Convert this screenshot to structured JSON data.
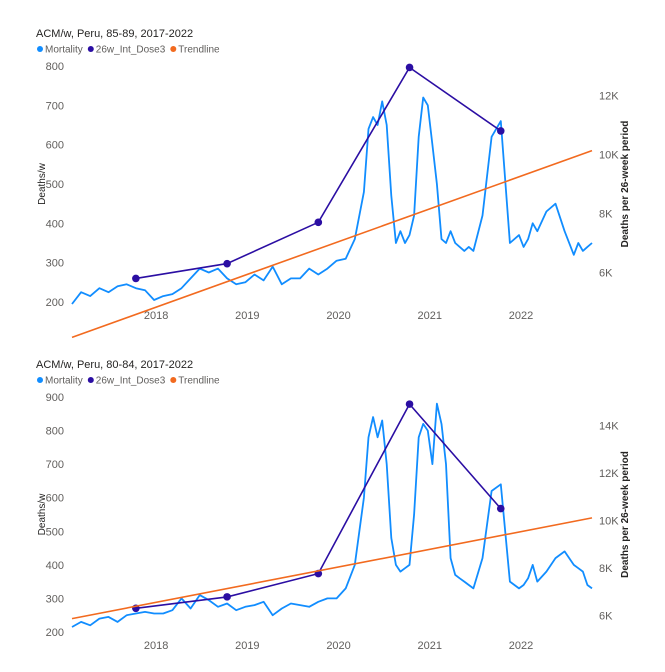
{
  "colors": {
    "mortality": "#118DFF",
    "dose": "#2B0EA3",
    "trend": "#F26A1F",
    "grid": "#e1dfdd"
  },
  "chart_data": [
    {
      "type": "line",
      "title": "ACM/w, Peru, 85-89, 2017-2022",
      "legend": [
        "Mortality",
        "26w_Int_Dose3",
        "Trendline"
      ],
      "legend_position": "top-left",
      "ylabel": "Deaths/w",
      "y2label": "Deaths per 26-week period",
      "ylim": [
        200,
        800
      ],
      "y2lim": [
        5000,
        13000
      ],
      "xlim": [
        2017.1,
        2022.8
      ],
      "yticks": [
        "200",
        "300",
        "400",
        "500",
        "600",
        "700",
        "800"
      ],
      "y2ticks": [
        "6K",
        "8K",
        "10K",
        "12K"
      ],
      "xticks": [
        "2018",
        "2019",
        "2020",
        "2021",
        "2022"
      ],
      "series": [
        {
          "name": "Mortality",
          "axis": "left",
          "x": [
            2017.1,
            2017.2,
            2017.3,
            2017.4,
            2017.5,
            2017.6,
            2017.7,
            2017.8,
            2017.9,
            2018.0,
            2018.1,
            2018.2,
            2018.3,
            2018.4,
            2018.5,
            2018.6,
            2018.7,
            2018.8,
            2018.9,
            2019.0,
            2019.1,
            2019.2,
            2019.3,
            2019.4,
            2019.5,
            2019.6,
            2019.7,
            2019.8,
            2019.9,
            2020.0,
            2020.1,
            2020.2,
            2020.3,
            2020.35,
            2020.4,
            2020.45,
            2020.5,
            2020.55,
            2020.6,
            2020.65,
            2020.7,
            2020.75,
            2020.8,
            2020.85,
            2020.9,
            2020.95,
            2021.0,
            2021.05,
            2021.1,
            2021.15,
            2021.2,
            2021.25,
            2021.3,
            2021.35,
            2021.4,
            2021.45,
            2021.5,
            2021.6,
            2021.7,
            2021.8,
            2021.9,
            2022.0,
            2022.05,
            2022.1,
            2022.15,
            2022.2,
            2022.3,
            2022.4,
            2022.5,
            2022.6,
            2022.65,
            2022.7,
            2022.75,
            2022.8
          ],
          "values": [
            195,
            225,
            215,
            235,
            225,
            240,
            245,
            235,
            230,
            205,
            215,
            220,
            235,
            260,
            285,
            275,
            285,
            260,
            245,
            250,
            270,
            255,
            290,
            245,
            260,
            260,
            285,
            270,
            285,
            305,
            310,
            360,
            480,
            640,
            670,
            650,
            710,
            650,
            470,
            350,
            380,
            350,
            370,
            420,
            620,
            720,
            700,
            600,
            500,
            360,
            350,
            380,
            350,
            340,
            330,
            340,
            330,
            420,
            620,
            660,
            350,
            370,
            340,
            360,
            400,
            380,
            430,
            450,
            380,
            320,
            350,
            330,
            340,
            350
          ]
        },
        {
          "name": "26w_Int_Dose3",
          "axis": "right",
          "x": [
            2017.8,
            2018.8,
            2019.8,
            2020.8,
            2021.8
          ],
          "values": [
            5800,
            6300,
            7700,
            12950,
            10800
          ]
        },
        {
          "name": "Trendline",
          "axis": "left",
          "x": [
            2017.1,
            2022.8
          ],
          "values": [
            110,
            585
          ]
        }
      ]
    },
    {
      "type": "line",
      "title": "ACM/w, Peru, 80-84, 2017-2022",
      "legend": [
        "Mortality",
        "26w_Int_Dose3",
        "Trendline"
      ],
      "legend_position": "top-left",
      "ylabel": "Deaths/w",
      "y2label": "Deaths per 26-week period",
      "ylim": [
        200,
        900
      ],
      "y2lim": [
        5300,
        15200
      ],
      "xlim": [
        2017.1,
        2022.8
      ],
      "yticks": [
        "200",
        "300",
        "400",
        "500",
        "600",
        "700",
        "800",
        "900"
      ],
      "y2ticks": [
        "6K",
        "8K",
        "10K",
        "12K",
        "14K"
      ],
      "xticks": [
        "2018",
        "2019",
        "2020",
        "2021",
        "2022"
      ],
      "series": [
        {
          "name": "Mortality",
          "axis": "left",
          "x": [
            2017.1,
            2017.2,
            2017.3,
            2017.4,
            2017.5,
            2017.6,
            2017.7,
            2017.8,
            2017.9,
            2018.0,
            2018.1,
            2018.2,
            2018.3,
            2018.4,
            2018.5,
            2018.6,
            2018.7,
            2018.8,
            2018.9,
            2019.0,
            2019.1,
            2019.2,
            2019.3,
            2019.4,
            2019.5,
            2019.6,
            2019.7,
            2019.8,
            2019.9,
            2020.0,
            2020.1,
            2020.2,
            2020.3,
            2020.35,
            2020.4,
            2020.45,
            2020.5,
            2020.55,
            2020.6,
            2020.65,
            2020.7,
            2020.75,
            2020.8,
            2020.85,
            2020.9,
            2020.95,
            2021.0,
            2021.05,
            2021.1,
            2021.15,
            2021.2,
            2021.25,
            2021.3,
            2021.35,
            2021.4,
            2021.45,
            2021.5,
            2021.6,
            2021.7,
            2021.8,
            2021.9,
            2022.0,
            2022.05,
            2022.1,
            2022.15,
            2022.2,
            2022.3,
            2022.4,
            2022.5,
            2022.6,
            2022.65,
            2022.7,
            2022.75,
            2022.8
          ],
          "values": [
            215,
            230,
            220,
            240,
            245,
            230,
            250,
            255,
            260,
            255,
            255,
            265,
            300,
            270,
            310,
            295,
            275,
            285,
            265,
            275,
            280,
            290,
            250,
            270,
            285,
            280,
            275,
            290,
            300,
            300,
            330,
            400,
            600,
            780,
            840,
            780,
            830,
            700,
            480,
            400,
            380,
            390,
            400,
            550,
            780,
            820,
            800,
            700,
            880,
            820,
            700,
            420,
            370,
            360,
            350,
            340,
            330,
            420,
            620,
            640,
            350,
            330,
            340,
            360,
            400,
            350,
            380,
            420,
            440,
            400,
            390,
            380,
            340,
            330
          ]
        },
        {
          "name": "26w_Int_Dose3",
          "axis": "right",
          "x": [
            2017.8,
            2018.8,
            2019.8,
            2020.8,
            2021.8
          ],
          "values": [
            6300,
            6780,
            7760,
            14900,
            10500
          ]
        },
        {
          "name": "Trendline",
          "axis": "left",
          "x": [
            2017.1,
            2022.8
          ],
          "values": [
            240,
            540
          ]
        }
      ]
    }
  ]
}
